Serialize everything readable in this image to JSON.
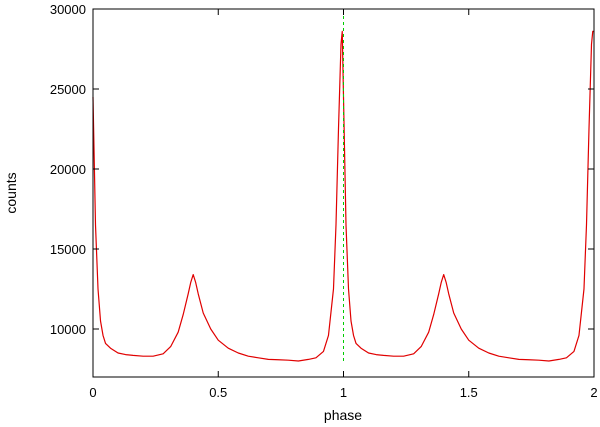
{
  "chart_data": {
    "type": "line",
    "title": "",
    "xlabel": "phase",
    "ylabel": "counts",
    "xlim": [
      0,
      2
    ],
    "ylim": [
      7000,
      30000
    ],
    "grid": false,
    "legend": "none",
    "x_ticks": [
      {
        "value": 0,
        "label": "0"
      },
      {
        "value": 0.5,
        "label": "0.5"
      },
      {
        "value": 1,
        "label": "1"
      },
      {
        "value": 1.5,
        "label": "1.5"
      },
      {
        "value": 2,
        "label": "2"
      }
    ],
    "y_ticks": [
      {
        "value": 10000,
        "label": "10000"
      },
      {
        "value": 15000,
        "label": "15000"
      },
      {
        "value": 20000,
        "label": "20000"
      },
      {
        "value": 25000,
        "label": "25000"
      },
      {
        "value": 30000,
        "label": "30000"
      }
    ],
    "series": [
      {
        "color": "#e00000",
        "x": [
          0.0,
          0.01,
          0.02,
          0.03,
          0.04,
          0.05,
          0.07,
          0.1,
          0.13,
          0.16,
          0.2,
          0.24,
          0.28,
          0.31,
          0.34,
          0.36,
          0.38,
          0.39,
          0.4,
          0.41,
          0.42,
          0.44,
          0.47,
          0.5,
          0.54,
          0.58,
          0.62,
          0.66,
          0.7,
          0.74,
          0.78,
          0.82,
          0.86,
          0.89,
          0.92,
          0.94,
          0.96,
          0.97,
          0.98,
          0.99,
          0.995,
          1.0,
          1.01,
          1.02,
          1.03,
          1.04,
          1.05,
          1.07,
          1.1,
          1.13,
          1.16,
          1.2,
          1.24,
          1.28,
          1.31,
          1.34,
          1.36,
          1.38,
          1.39,
          1.4,
          1.41,
          1.42,
          1.44,
          1.47,
          1.5,
          1.54,
          1.58,
          1.62,
          1.66,
          1.7,
          1.74,
          1.78,
          1.82,
          1.86,
          1.89,
          1.92,
          1.94,
          1.96,
          1.97,
          1.98,
          1.99,
          1.995,
          2.0
        ],
        "y": [
          24500,
          16500,
          12500,
          10500,
          9600,
          9100,
          8800,
          8500,
          8400,
          8350,
          8300,
          8300,
          8450,
          8900,
          9800,
          10900,
          12200,
          12900,
          13400,
          12900,
          12200,
          11000,
          10000,
          9300,
          8800,
          8500,
          8300,
          8200,
          8100,
          8080,
          8050,
          8000,
          8100,
          8200,
          8600,
          9600,
          12500,
          16500,
          22500,
          27800,
          28600,
          24500,
          16500,
          12500,
          10500,
          9600,
          9100,
          8800,
          8500,
          8400,
          8350,
          8300,
          8300,
          8450,
          8900,
          9800,
          10900,
          12200,
          12900,
          13400,
          12900,
          12200,
          11000,
          10000,
          9300,
          8800,
          8500,
          8300,
          8200,
          8100,
          8080,
          8050,
          8000,
          8100,
          8200,
          8600,
          9600,
          12500,
          16500,
          22500,
          27800,
          28600,
          28600
        ]
      }
    ],
    "reference_lines": [
      {
        "x": 1,
        "y_from": 8000,
        "y_to": 30000,
        "color": "#00cc00",
        "style": "dashed"
      }
    ]
  }
}
